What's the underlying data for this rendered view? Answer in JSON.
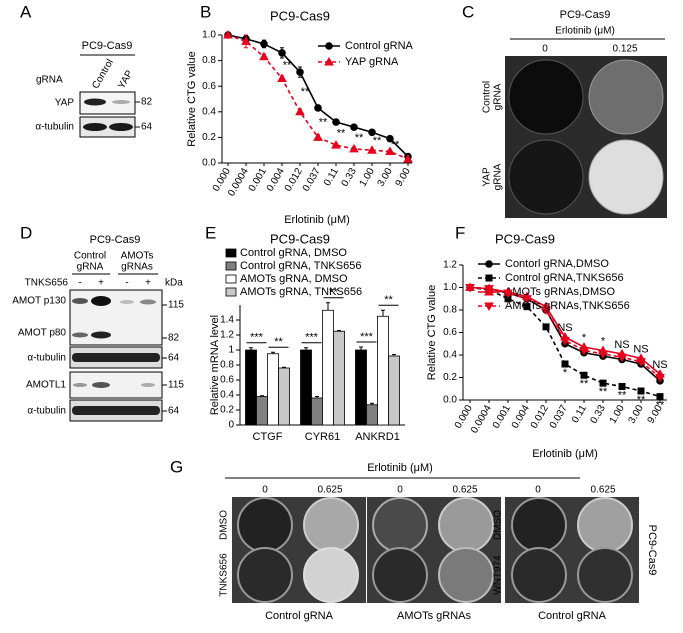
{
  "panels": {
    "A": {
      "letter": "A",
      "title": "PC9-Cas9",
      "label_header": "gRNA",
      "lanes": [
        "Control",
        "YAP"
      ],
      "rows": [
        "YAP",
        "α-tubulin"
      ],
      "size_markers": [
        "82",
        "64"
      ]
    },
    "C": {
      "letter": "C",
      "title": "PC9-Cas9",
      "treatment": "Erlotinib (μM)",
      "doses": [
        "0",
        "0.125"
      ],
      "row_labels": [
        [
          "Control",
          "gRNA"
        ],
        [
          "YAP",
          "gRNA"
        ]
      ]
    },
    "D": {
      "letter": "D",
      "title": "PC9-Cas9",
      "groups": [
        [
          "Control",
          "gRNA"
        ],
        [
          "AMOTs",
          "gRNAs"
        ]
      ],
      "treatment": "TNKS656",
      "lane_signs": [
        "-",
        "+",
        "-",
        "+"
      ],
      "unit": "kDa",
      "rows": [
        "AMOT p130",
        "AMOT p80",
        "α-tubulin",
        "AMOTL1",
        "α-tubulin"
      ],
      "size_markers": [
        "115",
        "82",
        "64",
        "115",
        "64"
      ]
    },
    "G": {
      "letter": "G",
      "treatment": "Erlotinib (μM)",
      "doses": [
        "0",
        "0.625",
        "0",
        "0.625",
        "0",
        "0.625"
      ],
      "row_labels": [
        "DMSO",
        "TNKS656",
        "DMSO",
        "WNT974"
      ],
      "plate_labels": [
        "Control gRNA",
        "AMOTs gRNAs",
        "Control gRNA"
      ],
      "cell_line": "PC9-Cas9"
    }
  },
  "chart_data": [
    {
      "letter": "B",
      "type": "line",
      "title": "PC9-Cas9",
      "x_label": "Erlotinib (μM)",
      "y_label": "Relative CTG value",
      "categories": [
        "0.000",
        "0.0004",
        "0.001",
        "0.004",
        "0.012",
        "0.037",
        "0.11",
        "0.33",
        "1.00",
        "3.00",
        "9.00"
      ],
      "ylim": [
        0,
        1
      ],
      "yticks": [
        {
          "value": 0,
          "label": "0.0"
        },
        0.2,
        0.4,
        0.6,
        0.8,
        {
          "value": 1,
          "label": "1.0"
        }
      ],
      "series": [
        {
          "name": "Control gRNA",
          "color": "#000000",
          "marker": "circle",
          "dashed": false,
          "values": [
            1.0,
            0.97,
            0.93,
            0.86,
            0.71,
            0.43,
            0.32,
            0.28,
            0.24,
            0.19,
            0.05
          ],
          "errors": [
            0,
            0.03,
            0.03,
            0.04,
            0.04,
            0.02,
            0.01,
            0.01,
            0.01,
            0.01,
            0.01
          ]
        },
        {
          "name": "YAP gRNA",
          "color": "#e8001c",
          "marker": "triangle",
          "dashed": true,
          "values": [
            1.0,
            0.95,
            0.83,
            0.66,
            0.4,
            0.2,
            0.14,
            0.11,
            0.1,
            0.09,
            0.03
          ],
          "errors": [
            0,
            0.05,
            0.02,
            0.02,
            0.02,
            0.02,
            0.01,
            0.01,
            0.01,
            0.01,
            0.01
          ]
        }
      ],
      "significance": [
        null,
        null,
        null,
        "**",
        "**",
        "**",
        "**",
        "**",
        "**",
        "**",
        null
      ]
    },
    {
      "letter": "E",
      "type": "bar",
      "title": "PC9-Cas9",
      "y_label": "Relative mRNA level",
      "categories": [
        "CTGF",
        "CYR61",
        "ANKRD1"
      ],
      "ylim": [
        0,
        1.6
      ],
      "yticks": [
        0,
        0.2,
        0.4,
        0.6,
        0.8,
        1,
        1.2,
        1.4
      ],
      "series": [
        {
          "name": "Control gRNA, DMSO",
          "color": "#000000",
          "values": [
            1.0,
            1.0,
            1.0
          ],
          "errors": [
            0.03,
            0.03,
            0.04
          ]
        },
        {
          "name": "Control gRNA, TNKS656",
          "color": "#808080",
          "values": [
            0.38,
            0.36,
            0.27
          ],
          "errors": [
            0.01,
            0.02,
            0.02
          ]
        },
        {
          "name": "AMOTs gRNA, DMSO",
          "color": "#ffffff",
          "values": [
            0.95,
            1.53,
            1.45
          ],
          "errors": [
            0.02,
            0.1,
            0.08
          ]
        },
        {
          "name": "AMOTs gRNA, TNKS656",
          "color": "#c8c8c8",
          "values": [
            0.76,
            1.25,
            0.92
          ],
          "errors": [
            0.01,
            0.01,
            0.02
          ]
        }
      ],
      "significance_tnks656": [
        "***",
        "***",
        "***"
      ],
      "significance_amots": [
        "**",
        "**",
        "**"
      ]
    },
    {
      "letter": "F",
      "type": "line",
      "title": "PC9-Cas9",
      "x_label": "Erlotinib (μM)",
      "y_label": "Relative CTG value",
      "categories": [
        "0.000",
        "0.0004",
        "0.001",
        "0.004",
        "0.012",
        "0.037",
        "0.11",
        "0.33",
        "1.00",
        "3.00",
        "9.00"
      ],
      "ylim": [
        0,
        1.2
      ],
      "yticks": [
        {
          "value": 0,
          "label": "0.0"
        },
        0.2,
        0.4,
        0.6,
        0.8,
        {
          "value": 1,
          "label": "1.0"
        },
        1.2
      ],
      "series": [
        {
          "name": "Contorl gRNA,DMSO",
          "color": "#000000",
          "marker": "circle",
          "dashed": false,
          "values": [
            1.0,
            0.99,
            0.95,
            0.9,
            0.8,
            0.5,
            0.42,
            0.39,
            0.36,
            0.32,
            0.17
          ]
        },
        {
          "name": "Control gRNA,TNKS656",
          "color": "#000000",
          "marker": "square",
          "dashed": true,
          "values": [
            1.0,
            0.98,
            0.9,
            0.83,
            0.65,
            0.32,
            0.22,
            0.15,
            0.12,
            0.08,
            0.03
          ]
        },
        {
          "name": "AMOTs gRNAs,DMSO",
          "color": "#e8001c",
          "marker": "triangle",
          "dashed": false,
          "values": [
            1.0,
            0.99,
            0.96,
            0.92,
            0.83,
            0.56,
            0.47,
            0.44,
            0.41,
            0.37,
            0.23
          ]
        },
        {
          "name": "AMOTs gRNAs,TNKS656",
          "color": "#e8001c",
          "marker": "triangle-down",
          "dashed": true,
          "values": [
            1.0,
            0.99,
            0.95,
            0.9,
            0.8,
            0.53,
            0.44,
            0.41,
            0.38,
            0.34,
            0.2
          ]
        }
      ],
      "significance_upper": [
        null,
        null,
        null,
        null,
        null,
        "NS",
        "*",
        "*",
        "NS",
        "NS",
        "NS"
      ],
      "significance_lower": [
        null,
        null,
        null,
        null,
        null,
        "*",
        "**",
        "**",
        "**",
        "**",
        "**"
      ]
    }
  ]
}
